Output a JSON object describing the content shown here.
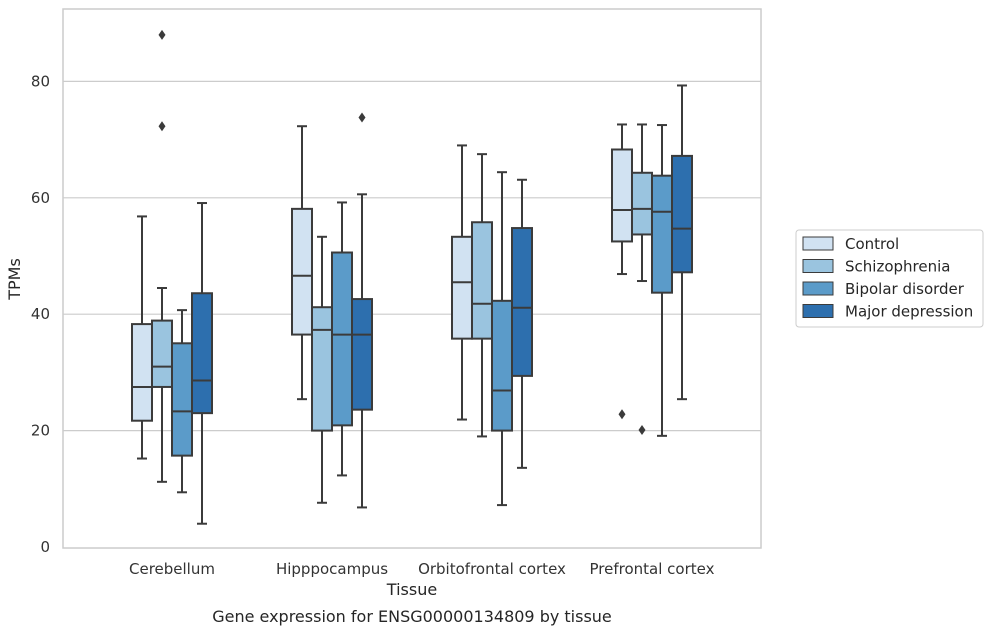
{
  "chart_data": {
    "type": "box",
    "caption": "Gene expression for ENSG00000134809 by tissue",
    "xlabel": "Tissue",
    "ylabel": "TPMs",
    "ylim": [
      0,
      92
    ],
    "yticks": [
      0,
      20,
      40,
      60,
      80
    ],
    "grid": "horizontal",
    "legend_position": "right",
    "categories": [
      "Cerebellum",
      "Hipppocampus",
      "Orbitofrontal cortex",
      "Prefrontal cortex"
    ],
    "series": [
      {
        "name": "Control",
        "color": "#d1e2f2",
        "boxes": [
          {
            "whislo": 15.2,
            "q1": 21.7,
            "med": 27.5,
            "q3": 38.3,
            "whishi": 56.8,
            "fliers": []
          },
          {
            "whislo": 25.4,
            "q1": 36.5,
            "med": 46.6,
            "q3": 58.1,
            "whishi": 72.3,
            "fliers": []
          },
          {
            "whislo": 21.9,
            "q1": 35.8,
            "med": 45.5,
            "q3": 53.3,
            "whishi": 69.0,
            "fliers": []
          },
          {
            "whislo": 46.9,
            "q1": 52.5,
            "med": 57.9,
            "q3": 68.3,
            "whishi": 72.6,
            "fliers": [
              22.8
            ]
          }
        ]
      },
      {
        "name": "Schizophrenia",
        "color": "#9ac4df",
        "boxes": [
          {
            "whislo": 11.2,
            "q1": 27.5,
            "med": 31.0,
            "q3": 38.9,
            "whishi": 44.5,
            "fliers": [
              72.3,
              88.0
            ]
          },
          {
            "whislo": 7.6,
            "q1": 20.0,
            "med": 37.3,
            "q3": 41.2,
            "whishi": 53.3,
            "fliers": []
          },
          {
            "whislo": 19.0,
            "q1": 35.8,
            "med": 41.8,
            "q3": 55.8,
            "whishi": 67.5,
            "fliers": []
          },
          {
            "whislo": 45.7,
            "q1": 53.7,
            "med": 58.1,
            "q3": 64.3,
            "whishi": 72.6,
            "fliers": [
              20.1
            ]
          }
        ]
      },
      {
        "name": "Bipolar disorder",
        "color": "#5b9bc9",
        "boxes": [
          {
            "whislo": 9.4,
            "q1": 15.7,
            "med": 23.3,
            "q3": 35.0,
            "whishi": 40.7,
            "fliers": []
          },
          {
            "whislo": 12.3,
            "q1": 20.9,
            "med": 36.5,
            "q3": 50.6,
            "whishi": 59.2,
            "fliers": []
          },
          {
            "whislo": 7.2,
            "q1": 20.0,
            "med": 26.9,
            "q3": 42.3,
            "whishi": 64.4,
            "fliers": []
          },
          {
            "whislo": 19.1,
            "q1": 43.7,
            "med": 57.6,
            "q3": 63.8,
            "whishi": 72.5,
            "fliers": []
          }
        ]
      },
      {
        "name": "Major depression",
        "color": "#2d6fae",
        "boxes": [
          {
            "whislo": 4.0,
            "q1": 23.0,
            "med": 28.6,
            "q3": 43.6,
            "whishi": 59.1,
            "fliers": []
          },
          {
            "whislo": 6.8,
            "q1": 23.6,
            "med": 36.5,
            "q3": 42.6,
            "whishi": 60.6,
            "fliers": [
              73.8
            ]
          },
          {
            "whislo": 13.6,
            "q1": 29.4,
            "med": 41.1,
            "q3": 54.8,
            "whishi": 63.1,
            "fliers": []
          },
          {
            "whislo": 25.4,
            "q1": 47.2,
            "med": 54.7,
            "q3": 67.2,
            "whishi": 79.3,
            "fliers": []
          }
        ]
      }
    ]
  }
}
